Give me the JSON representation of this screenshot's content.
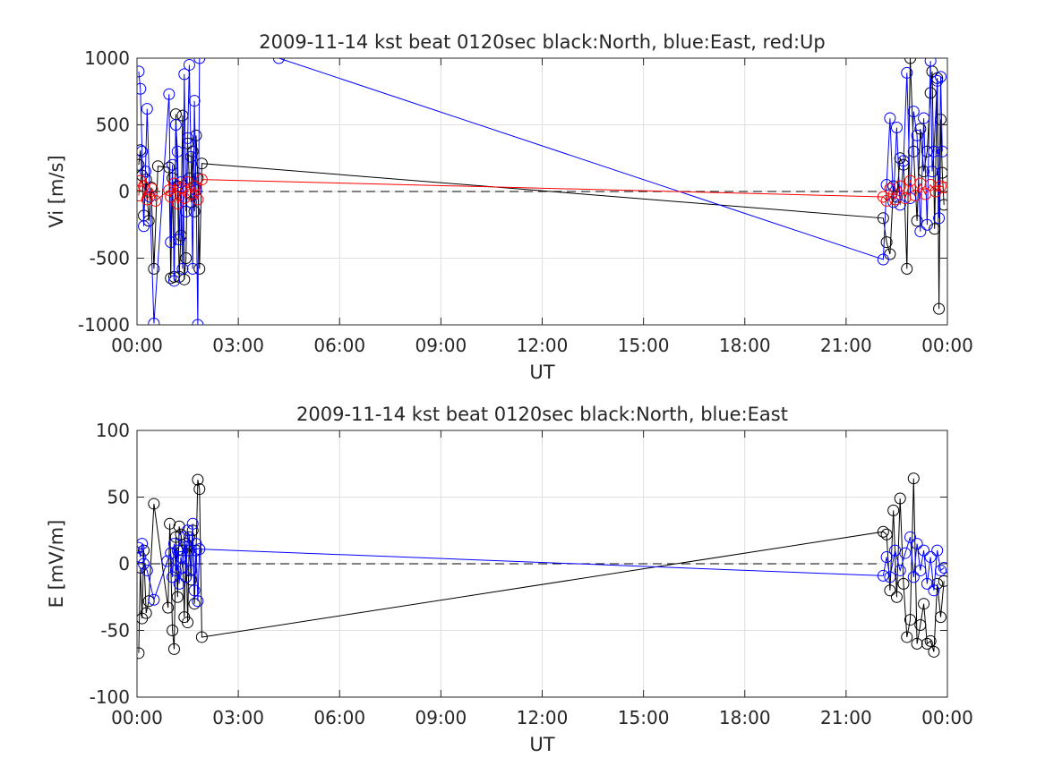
{
  "colors": {
    "north": "#000000",
    "east": "#0000ff",
    "up": "#ff0000",
    "grid": "#dfdfdf",
    "axis": "#262626"
  },
  "chart_data": [
    {
      "type": "line",
      "title": "2009-11-14 kst beat 0120sec black:North, blue:East, red:Up",
      "xlabel": "UT",
      "ylabel": "Vi [m/s]",
      "xlim": [
        "00:00",
        "24:00"
      ],
      "ylim": [
        -1000,
        1000
      ],
      "xtick_labels": [
        "00:00",
        "03:00",
        "06:00",
        "09:00",
        "12:00",
        "15:00",
        "18:00",
        "21:00",
        "00:00"
      ],
      "ytick_labels": [
        "-1000",
        "-500",
        "0",
        "500",
        "1000"
      ],
      "yticks": [
        -1000,
        -500,
        0,
        500,
        1000
      ],
      "grid": true,
      "zero_line": "dashed",
      "series": [
        {
          "color": "black",
          "x_hours": [
            0.05,
            0.1,
            0.15,
            0.2,
            0.27,
            0.35,
            0.42,
            0.5,
            0.62,
            0.95,
            1.0,
            1.05,
            1.1,
            1.15,
            1.2,
            1.25,
            1.3,
            1.35,
            1.4,
            1.45,
            1.5,
            1.55,
            1.6,
            1.65,
            1.7,
            1.75,
            1.8,
            1.85,
            1.92,
            22.1,
            22.2,
            22.3,
            22.4,
            22.5,
            22.6,
            22.7,
            22.8,
            22.9,
            23.0,
            23.1,
            23.2,
            23.3,
            23.4,
            23.5,
            23.55,
            23.62,
            23.7,
            23.75,
            23.8,
            23.85,
            23.9
          ],
          "values": [
            200,
            310,
            120,
            -180,
            90,
            -220,
            30,
            -580,
            190,
            180,
            -650,
            100,
            -640,
            580,
            40,
            -640,
            -330,
            570,
            -660,
            -500,
            360,
            100,
            -80,
            300,
            -150,
            420,
            100,
            -580,
            210,
            -200,
            -380,
            -470,
            40,
            -40,
            250,
            200,
            -580,
            1000,
            300,
            -220,
            470,
            150,
            300,
            740,
            900,
            -280,
            850,
            -880,
            540,
            140,
            -100
          ]
        },
        {
          "color": "blue",
          "x_hours": [
            0.05,
            0.1,
            0.15,
            0.2,
            0.25,
            0.3,
            0.38,
            0.5,
            0.95,
            1.0,
            1.05,
            1.1,
            1.15,
            1.2,
            1.25,
            1.3,
            1.35,
            1.4,
            1.45,
            1.5,
            1.55,
            1.6,
            1.65,
            1.7,
            1.75,
            1.8,
            1.85,
            4.2,
            22.1,
            22.2,
            22.3,
            22.4,
            22.5,
            22.6,
            22.7,
            22.8,
            22.9,
            23.0,
            23.1,
            23.2,
            23.3,
            23.4,
            23.5,
            23.55,
            23.6,
            23.7,
            23.75,
            23.8,
            23.85
          ],
          "values": [
            900,
            770,
            300,
            -260,
            150,
            620,
            -40,
            -990,
            730,
            -380,
            200,
            -670,
            500,
            300,
            -360,
            70,
            -580,
            880,
            -150,
            400,
            950,
            260,
            -580,
            680,
            10,
            -1000,
            1000,
            1000,
            -510,
            50,
            550,
            -80,
            480,
            -100,
            230,
            890,
            -50,
            600,
            420,
            -300,
            550,
            -250,
            980,
            150,
            300,
            830,
            -200,
            860,
            300
          ]
        },
        {
          "color": "red",
          "x_hours": [
            0.05,
            0.1,
            0.2,
            0.3,
            0.45,
            0.55,
            0.95,
            1.0,
            1.1,
            1.2,
            1.3,
            1.4,
            1.5,
            1.6,
            1.7,
            1.8,
            1.92,
            22.1,
            22.2,
            22.3,
            22.45,
            22.6,
            22.75,
            22.9,
            23.05,
            23.2,
            23.35,
            23.5,
            23.65,
            23.8,
            23.9
          ],
          "values": [
            -30,
            80,
            40,
            -60,
            20,
            -70,
            10,
            -40,
            60,
            -90,
            30,
            -50,
            70,
            -20,
            40,
            -60,
            90,
            -40,
            -70,
            20,
            -60,
            40,
            -50,
            80,
            -30,
            60,
            -20,
            50,
            0,
            40,
            30
          ]
        }
      ]
    },
    {
      "type": "line",
      "title": "2009-11-14 kst beat 0120sec black:North, blue:East",
      "xlabel": "UT",
      "ylabel": "E [mV/m]",
      "xlim": [
        "00:00",
        "24:00"
      ],
      "ylim": [
        -100,
        100
      ],
      "xtick_labels": [
        "00:00",
        "03:00",
        "06:00",
        "09:00",
        "12:00",
        "15:00",
        "18:00",
        "21:00",
        "00:00"
      ],
      "ytick_labels": [
        "-100",
        "-50",
        "0",
        "50",
        "100"
      ],
      "yticks": [
        -100,
        -50,
        0,
        50,
        100
      ],
      "grid": true,
      "zero_line": "dashed",
      "series": [
        {
          "color": "black",
          "x_hours": [
            0.05,
            0.1,
            0.15,
            0.2,
            0.27,
            0.35,
            0.5,
            0.92,
            0.97,
            1.05,
            1.1,
            1.15,
            1.2,
            1.25,
            1.3,
            1.35,
            1.4,
            1.45,
            1.5,
            1.55,
            1.6,
            1.65,
            1.7,
            1.75,
            1.8,
            1.85,
            1.92,
            22.1,
            22.2,
            22.3,
            22.4,
            22.5,
            22.6,
            22.7,
            22.8,
            22.9,
            23.0,
            23.1,
            23.2,
            23.3,
            23.4,
            23.5,
            23.6,
            23.7,
            23.8,
            23.9
          ],
          "values": [
            -67,
            -3,
            -41,
            10,
            -37,
            -28,
            45,
            -33,
            30,
            -50,
            -64,
            20,
            -25,
            28,
            22,
            10,
            -40,
            15,
            -44,
            20,
            -12,
            25,
            -30,
            10,
            63,
            56,
            -55,
            24,
            22,
            -20,
            40,
            -25,
            49,
            -15,
            -55,
            -42,
            64,
            -60,
            -46,
            -30,
            -60,
            -58,
            -66,
            -15,
            -40,
            -13
          ]
        },
        {
          "color": "blue",
          "x_hours": [
            0.05,
            0.1,
            0.15,
            0.2,
            0.3,
            0.5,
            0.9,
            1.0,
            1.05,
            1.1,
            1.15,
            1.2,
            1.25,
            1.3,
            1.35,
            1.4,
            1.45,
            1.5,
            1.55,
            1.6,
            1.65,
            1.7,
            1.75,
            1.8,
            1.85,
            22.1,
            22.2,
            22.3,
            22.45,
            22.6,
            22.75,
            22.9,
            23.0,
            23.1,
            23.2,
            23.3,
            23.4,
            23.5,
            23.6,
            23.7,
            23.8,
            23.9
          ],
          "values": [
            12,
            5,
            15,
            0,
            -5,
            -27,
            2,
            8,
            -10,
            15,
            -5,
            10,
            -15,
            5,
            -3,
            20,
            -10,
            25,
            10,
            -5,
            30,
            -20,
            15,
            -28,
            11,
            -9,
            5,
            -10,
            10,
            -5,
            8,
            20,
            -10,
            15,
            -5,
            10,
            -15,
            5,
            -20,
            10,
            -5,
            -3
          ]
        }
      ]
    }
  ]
}
